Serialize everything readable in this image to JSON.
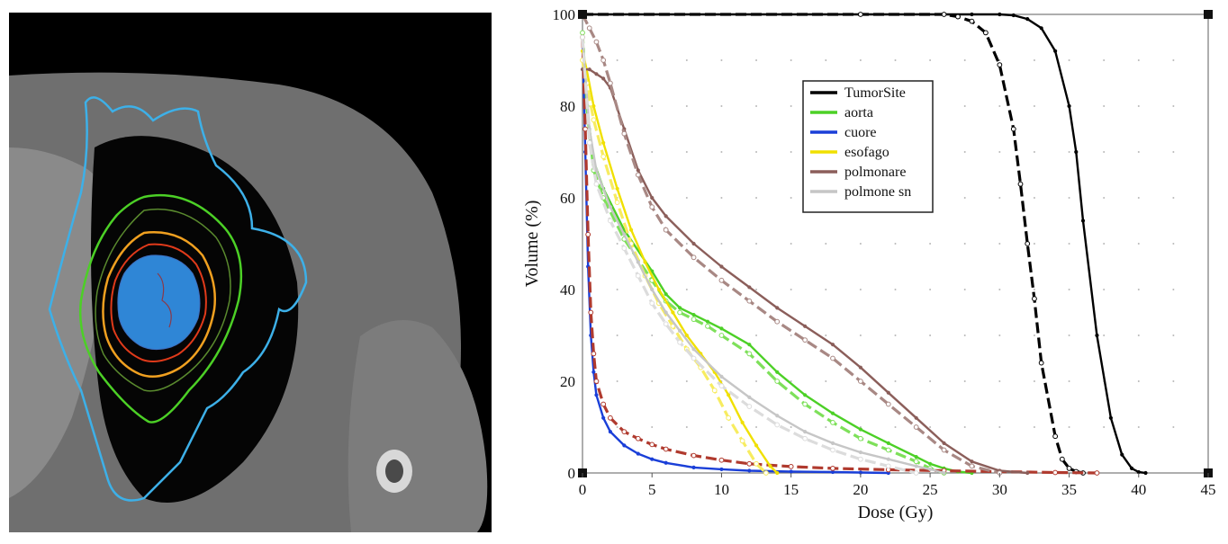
{
  "chart_data": {
    "type": "line",
    "xlabel": "Dose (Gy)",
    "ylabel": "Volume (%)",
    "xlim": [
      0,
      45
    ],
    "ylim": [
      0,
      100
    ],
    "xticks": [
      0,
      5,
      10,
      15,
      20,
      25,
      30,
      35,
      40,
      45
    ],
    "yticks": [
      0,
      20,
      40,
      60,
      80,
      100
    ],
    "grid": "dotted",
    "legend_position": "top-center",
    "series": [
      {
        "name": "TumorSite",
        "color": "#000000",
        "style": "solid",
        "x": [
          0,
          20,
          28,
          30,
          31,
          32,
          33,
          34,
          35,
          35.5,
          36,
          37,
          38,
          38.8,
          39.5,
          40,
          40.5
        ],
        "y": [
          100,
          100,
          100,
          100,
          99.8,
          99,
          97,
          92,
          80,
          70,
          55,
          30,
          12,
          4,
          1,
          0.2,
          0
        ]
      },
      {
        "name": "TumorSite",
        "color": "#000000",
        "style": "dashed",
        "x": [
          0,
          20,
          26,
          27,
          28,
          29,
          30,
          31,
          31.5,
          32,
          32.5,
          33,
          34,
          34.5,
          35,
          35.5,
          36
        ],
        "y": [
          100,
          100,
          100,
          99.5,
          98.5,
          96,
          89,
          75,
          63,
          50,
          38,
          24,
          8,
          3,
          1,
          0.3,
          0
        ]
      },
      {
        "name": "aorta",
        "color": "#4cd026",
        "style": "solid",
        "x": [
          0,
          0.3,
          0.8,
          1.5,
          3,
          5,
          6,
          7,
          8,
          9,
          10,
          12,
          14,
          16,
          18,
          20,
          22,
          24,
          25,
          26,
          27,
          28
        ],
        "y": [
          96,
          80,
          68,
          62,
          53,
          44,
          39,
          36,
          34.5,
          33,
          31.5,
          28,
          22,
          17,
          13,
          9.5,
          6.5,
          3.5,
          2,
          1,
          0.3,
          0
        ]
      },
      {
        "name": "aorta",
        "color": "#7ee05a",
        "style": "dashed",
        "x": [
          0,
          0.3,
          0.8,
          1.5,
          3,
          5,
          6,
          7,
          8,
          9,
          10,
          12,
          14,
          16,
          18,
          20,
          22,
          24,
          25,
          26
        ],
        "y": [
          96,
          80,
          66,
          60,
          51,
          42,
          37.5,
          35,
          33.5,
          32,
          30,
          26,
          20,
          15,
          11,
          7.5,
          5,
          2.5,
          1,
          0
        ]
      },
      {
        "name": "cuore",
        "color": "#1a3fd8",
        "style": "solid",
        "x": [
          0,
          0.2,
          0.4,
          0.6,
          0.8,
          1,
          1.5,
          2,
          3,
          4,
          5,
          6,
          8,
          10,
          12,
          15,
          18,
          20,
          22
        ],
        "y": [
          95,
          70,
          45,
          30,
          22,
          17,
          12,
          9,
          6,
          4.2,
          3,
          2.2,
          1.2,
          0.8,
          0.5,
          0.3,
          0.2,
          0.1,
          0
        ]
      },
      {
        "name": "cuore",
        "color": "#b03a2e",
        "style": "dashed",
        "x": [
          0,
          0.2,
          0.4,
          0.6,
          0.8,
          1,
          1.5,
          2,
          3,
          4,
          5,
          6,
          8,
          10,
          12,
          15,
          18,
          22,
          26,
          30,
          34,
          37
        ],
        "y": [
          95,
          75,
          52,
          35,
          26,
          20,
          15,
          12,
          9,
          7.5,
          6.2,
          5.2,
          3.8,
          2.8,
          2,
          1.4,
          1,
          0.7,
          0.5,
          0.3,
          0.1,
          0
        ]
      },
      {
        "name": "esofago",
        "color": "#f0e000",
        "style": "solid",
        "x": [
          0,
          0.3,
          0.8,
          1.5,
          2.5,
          3.5,
          4.5,
          5.5,
          6.5,
          7.5,
          8.5,
          9.5,
          10.5,
          11.5,
          12.5,
          13.5,
          14
        ],
        "y": [
          92,
          88,
          80,
          72,
          62,
          53,
          46,
          40,
          35,
          30,
          26,
          22,
          17,
          11,
          6,
          1.5,
          0
        ]
      },
      {
        "name": "esofago",
        "color": "#f7ec60",
        "style": "dashed",
        "x": [
          0,
          0.3,
          0.8,
          1.5,
          2.5,
          3.5,
          4.5,
          5.5,
          6.5,
          7.5,
          8.5,
          9.5,
          10.5,
          11.5,
          12.5,
          13.2
        ],
        "y": [
          90,
          85,
          77,
          69,
          59,
          50,
          43,
          37,
          32,
          27,
          23,
          18,
          12,
          7,
          2,
          0
        ]
      },
      {
        "name": "polmonare",
        "color": "#8b5e5a",
        "style": "solid",
        "x": [
          0,
          0.5,
          1,
          1.5,
          2,
          3,
          4,
          5,
          6,
          8,
          10,
          12,
          14,
          16,
          18,
          20,
          22,
          24,
          26,
          28,
          30,
          32
        ],
        "y": [
          88,
          88,
          87,
          86,
          84,
          75,
          66,
          60,
          56,
          50,
          45,
          40.5,
          36,
          32,
          28,
          23,
          17.5,
          12,
          6.5,
          2.5,
          0.5,
          0
        ]
      },
      {
        "name": "polmonare",
        "color": "#a88884",
        "style": "dashed",
        "x": [
          0,
          0.5,
          1,
          1.5,
          2,
          3,
          4,
          5,
          6,
          8,
          10,
          12,
          14,
          16,
          18,
          20,
          22,
          24,
          26,
          28,
          30
        ],
        "y": [
          100,
          97,
          94,
          90,
          85,
          74,
          65,
          58,
          53,
          47,
          42,
          37.5,
          33,
          29,
          25,
          20,
          15,
          10,
          5,
          1.5,
          0
        ]
      },
      {
        "name": "polmone sn",
        "color": "#c6c6c6",
        "style": "solid",
        "x": [
          0,
          0.5,
          1,
          2,
          3,
          4,
          5,
          6,
          7,
          8,
          10,
          12,
          14,
          16,
          18,
          20,
          22,
          24,
          25,
          26
        ],
        "y": [
          95,
          75,
          66,
          58,
          52,
          46,
          40,
          35,
          31,
          27,
          21,
          16.5,
          12.5,
          9,
          6.5,
          4.5,
          3,
          1.5,
          0.8,
          0
        ]
      },
      {
        "name": "polmone sn",
        "color": "#dcdcdc",
        "style": "dashed",
        "x": [
          0,
          0.5,
          1,
          2,
          3,
          4,
          5,
          6,
          7,
          8,
          10,
          12,
          14,
          16,
          18,
          20,
          22,
          24
        ],
        "y": [
          95,
          72,
          63,
          55,
          49,
          43,
          37,
          32.5,
          28.5,
          25,
          19,
          14.5,
          10.5,
          7.5,
          5,
          3,
          1.5,
          0
        ]
      }
    ],
    "legend": [
      {
        "label": "TumorSite",
        "color": "#000000"
      },
      {
        "label": "aorta",
        "color": "#4cd026"
      },
      {
        "label": "cuore",
        "color": "#1a3fd8"
      },
      {
        "label": "esofago",
        "color": "#f0e000"
      },
      {
        "label": "polmonare",
        "color": "#8b5e5a"
      },
      {
        "label": "polmone sn",
        "color": "#c6c6c6"
      }
    ]
  }
}
